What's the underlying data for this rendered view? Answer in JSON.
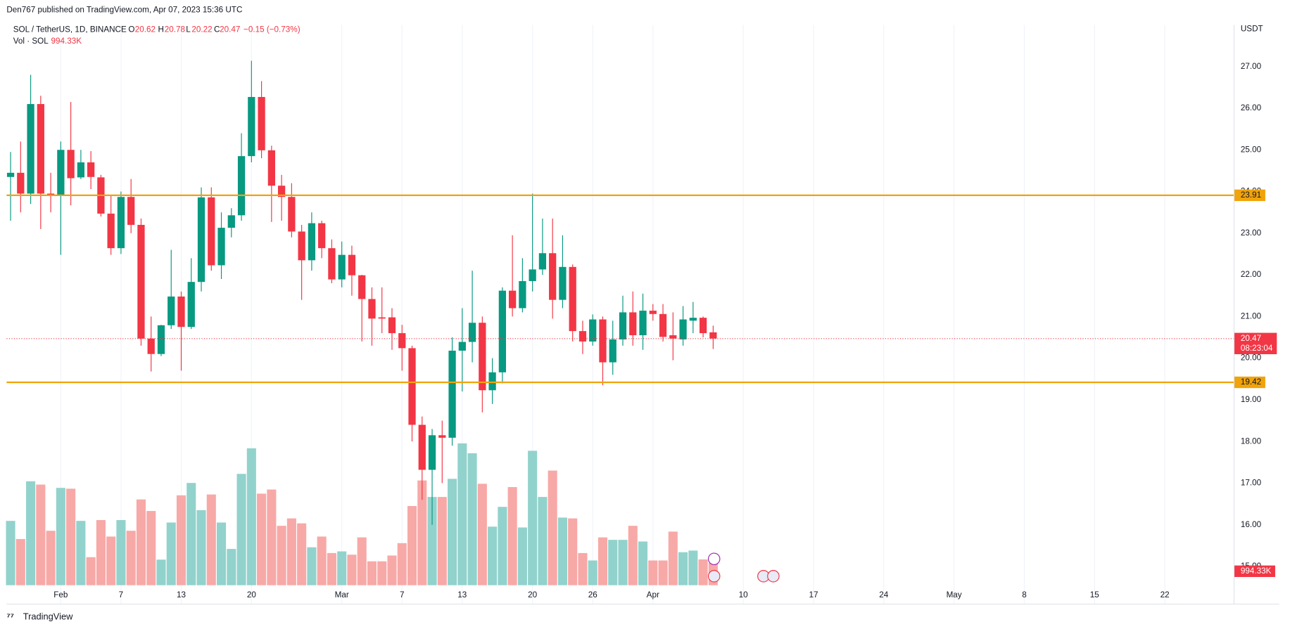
{
  "header": {
    "publisher": "Den767 published on TradingView.com, Apr 07, 2023 15:36 UTC",
    "symbol": "SOL / TetherUS, 1D, BINANCE",
    "o": "O",
    "h": "H",
    "l": "L",
    "c": "C",
    "change": "−0.15 (−0.73%)",
    "volume_title": "Vol · SOL",
    "volume_label": "994.33K",
    "brand": "TradingView"
  },
  "chart_data": {
    "type": "candlestick",
    "y_axis_label": "USDT",
    "grid": true,
    "up_color": "#089981",
    "down_color": "#f23645",
    "up_volume_color": "#92d2cc",
    "down_volume_color": "#f7a9a7",
    "x": [
      0,
      1,
      2,
      3,
      4,
      5,
      6,
      7,
      8,
      9,
      10,
      11,
      12,
      13,
      14,
      15,
      16,
      17,
      18,
      19,
      20,
      21,
      22,
      23,
      24,
      25,
      26,
      27,
      28,
      29,
      30,
      31,
      32,
      33,
      34,
      35,
      36,
      37,
      38,
      39,
      40,
      41,
      42,
      43,
      44,
      45,
      46,
      47,
      48,
      49,
      50,
      51,
      52,
      53,
      54,
      55,
      56,
      57,
      58,
      59,
      60,
      61,
      62,
      63,
      64,
      65,
      66,
      67,
      68,
      69,
      70
    ],
    "open": [
      24.35,
      24.45,
      23.95,
      26.1,
      23.95,
      23.9,
      25.0,
      24.34,
      24.7,
      24.34,
      23.47,
      22.64,
      23.87,
      23.2,
      20.47,
      20.1,
      20.79,
      21.48,
      20.75,
      21.83,
      23.86,
      22.23,
      23.13,
      23.43,
      24.85,
      26.27,
      24.99,
      24.14,
      23.87,
      23.04,
      22.35,
      23.24,
      22.64,
      21.89,
      22.48,
      21.99,
      21.42,
      20.98,
      20.98,
      20.6,
      20.24,
      18.4,
      17.32,
      18.15,
      18.09,
      20.18,
      20.39,
      20.85,
      19.23,
      19.66,
      21.62,
      21.2,
      21.85,
      22.13,
      22.52,
      21.4,
      22.19,
      20.65,
      20.4,
      20.93,
      19.9,
      20.45,
      21.1,
      20.55,
      21.14,
      21.06,
      20.55,
      20.45,
      20.9,
      20.97,
      20.62
    ],
    "high": [
      24.95,
      25.2,
      26.8,
      26.3,
      24.45,
      25.2,
      26.15,
      25.0,
      24.97,
      24.4,
      23.9,
      24.0,
      24.3,
      23.35,
      21.0,
      20.8,
      22.6,
      21.6,
      22.4,
      24.1,
      24.1,
      23.5,
      23.6,
      25.4,
      27.14,
      26.65,
      25.1,
      24.4,
      24.2,
      23.2,
      23.5,
      23.3,
      22.85,
      22.8,
      22.7,
      22.0,
      21.7,
      21.7,
      21.2,
      20.8,
      20.3,
      18.6,
      18.3,
      18.5,
      20.5,
      21.2,
      22.1,
      21.0,
      20.0,
      21.7,
      22.95,
      22.4,
      23.95,
      23.35,
      23.35,
      22.95,
      22.25,
      20.9,
      21.05,
      21.0,
      20.9,
      21.5,
      21.6,
      21.55,
      21.3,
      21.3,
      21.1,
      21.25,
      21.35,
      21.0,
      20.78
    ],
    "low": [
      23.3,
      23.5,
      23.7,
      23.1,
      23.5,
      22.48,
      23.67,
      24.3,
      24.06,
      23.4,
      22.48,
      22.5,
      23.0,
      20.3,
      19.68,
      20.05,
      20.7,
      19.7,
      20.7,
      21.6,
      22.1,
      21.9,
      22.9,
      23.3,
      24.7,
      24.8,
      23.27,
      23.3,
      22.9,
      21.4,
      22.1,
      22.4,
      21.8,
      21.7,
      21.5,
      20.4,
      20.3,
      20.6,
      20.2,
      19.7,
      18.0,
      16.6,
      16.0,
      17.0,
      17.9,
      19.2,
      19.9,
      18.7,
      18.9,
      19.4,
      21.0,
      21.1,
      21.6,
      22.0,
      20.95,
      21.2,
      20.4,
      20.1,
      20.3,
      19.35,
      19.6,
      20.3,
      20.3,
      20.2,
      20.9,
      20.4,
      19.95,
      20.3,
      20.6,
      20.5,
      20.22
    ],
    "close": [
      24.45,
      23.95,
      26.1,
      23.95,
      23.9,
      25.0,
      24.32,
      24.7,
      24.35,
      23.47,
      22.64,
      23.87,
      23.2,
      20.47,
      20.1,
      20.79,
      21.48,
      20.75,
      21.83,
      23.86,
      22.23,
      23.13,
      23.43,
      24.85,
      26.27,
      24.99,
      24.14,
      23.87,
      23.04,
      22.35,
      23.24,
      22.64,
      21.89,
      22.48,
      21.99,
      21.42,
      20.95,
      20.95,
      20.6,
      20.24,
      18.4,
      17.32,
      18.15,
      18.09,
      20.18,
      20.39,
      20.85,
      19.23,
      19.66,
      21.62,
      21.2,
      21.85,
      22.13,
      22.52,
      21.4,
      22.19,
      20.65,
      20.4,
      20.93,
      19.9,
      20.45,
      21.1,
      20.55,
      21.14,
      21.06,
      20.51,
      20.47,
      20.93,
      20.97,
      20.6,
      20.47
    ],
    "volume": [
      2870,
      2061,
      4637,
      4490,
      2429,
      4342,
      4306,
      2870,
      1251,
      2907,
      2171,
      2907,
      2429,
      3827,
      3312,
      1141,
      2797,
      4011,
      4563,
      3349,
      4048,
      2797,
      1619,
      4968,
      6109,
      4085,
      4269,
      2650,
      2981,
      2760,
      1693,
      2171,
      1435,
      1509,
      1362,
      2134,
      1067,
      1067,
      1325,
      1877,
      3533,
      4674,
      3938,
      3938,
      4747,
      6330,
      5888,
      4526,
      2613,
      3496,
      4379,
      2576,
      5998,
      3938,
      5115,
      3018,
      2981,
      1435,
      1104,
      2134,
      2024,
      2024,
      2650,
      1950,
      1104,
      1104,
      2392,
      1472,
      1546,
      1150,
      994.33
    ],
    "xlim": [
      -0.4,
      121.9
    ],
    "xticks": [
      {
        "value": 5,
        "label": "Feb"
      },
      {
        "value": 11,
        "label": "7"
      },
      {
        "value": 17,
        "label": "13"
      },
      {
        "value": 24,
        "label": "20"
      },
      {
        "value": 33,
        "label": "Mar"
      },
      {
        "value": 39,
        "label": "7"
      },
      {
        "value": 45,
        "label": "13"
      },
      {
        "value": 52,
        "label": "20"
      },
      {
        "value": 58,
        "label": "26"
      },
      {
        "value": 64,
        "label": "Apr"
      },
      {
        "value": 73,
        "label": "10"
      },
      {
        "value": 80,
        "label": "17"
      },
      {
        "value": 87,
        "label": "24"
      },
      {
        "value": 94,
        "label": "May"
      },
      {
        "value": 101,
        "label": "8"
      },
      {
        "value": 108,
        "label": "15"
      },
      {
        "value": 115,
        "label": "22"
      }
    ],
    "ylim": [
      14.55,
      28.0
    ],
    "yticks": [
      {
        "value": 15,
        "label": "15.00"
      },
      {
        "value": 16,
        "label": "16.00"
      },
      {
        "value": 17,
        "label": "17.00"
      },
      {
        "value": 18,
        "label": "18.00"
      },
      {
        "value": 19,
        "label": "19.00"
      },
      {
        "value": 20,
        "label": "20.00"
      },
      {
        "value": 21,
        "label": "21.00"
      },
      {
        "value": 22,
        "label": "22.00"
      },
      {
        "value": 23,
        "label": "23.00"
      },
      {
        "value": 24,
        "label": "24.00"
      },
      {
        "value": 25,
        "label": "25.00"
      },
      {
        "value": 26,
        "label": "26.00"
      },
      {
        "value": 27,
        "label": "27.00"
      }
    ],
    "y2lim": [
      0,
      25000
    ],
    "hlines": [
      {
        "value": 23.91,
        "color": "#f0a30a"
      },
      {
        "value": 19.42,
        "color": "#f0a30a"
      }
    ],
    "countdown": "08:23:04"
  }
}
